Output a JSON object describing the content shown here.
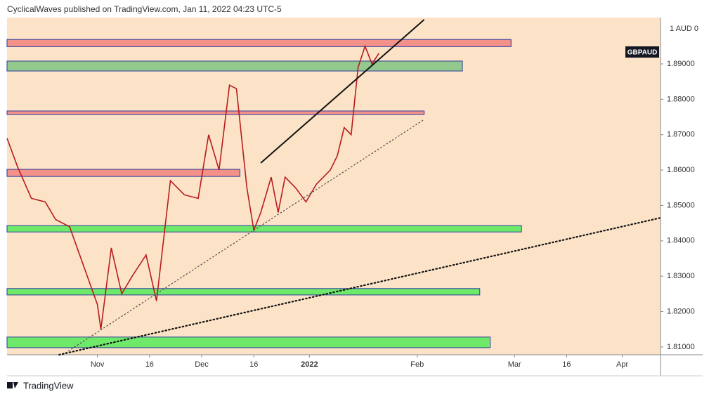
{
  "header": "CyclicalWaves published on TradingView.com, Jan 11, 2022 04:23 UTC-5",
  "footer": "TradingView",
  "chart_data": {
    "type": "line",
    "symbol": "GBPAUD",
    "currency_label": "1 AUD 0",
    "color": "#b71c1c",
    "background": "#fce3c8",
    "x": [
      "2021-10-06",
      "2021-10-09",
      "2021-10-13",
      "2021-10-17",
      "2021-10-20",
      "2021-10-24",
      "2021-10-28",
      "2021-11-01",
      "2021-11-02",
      "2021-11-05",
      "2021-11-08",
      "2021-11-11",
      "2021-11-15",
      "2021-11-18",
      "2021-11-20",
      "2021-11-22",
      "2021-11-26",
      "2021-11-30",
      "2021-12-03",
      "2021-12-06",
      "2021-12-09",
      "2021-12-11",
      "2021-12-14",
      "2021-12-16",
      "2021-12-18",
      "2021-12-21",
      "2021-12-23",
      "2021-12-25",
      "2021-12-28",
      "2021-12-31",
      "2022-01-03",
      "2022-01-05",
      "2022-01-07",
      "2022-01-09",
      "2022-01-11",
      "2022-01-13",
      "2022-01-15",
      "2022-01-17",
      "2022-01-19",
      "2022-01-21"
    ],
    "values": [
      1.869,
      1.861,
      1.852,
      1.851,
      1.846,
      1.844,
      1.833,
      1.822,
      1.815,
      1.838,
      1.825,
      1.83,
      1.836,
      1.823,
      1.84,
      1.857,
      1.853,
      1.852,
      1.87,
      1.86,
      1.884,
      1.883,
      1.855,
      1.843,
      1.848,
      1.858,
      1.848,
      1.858,
      1.855,
      1.851,
      1.856,
      1.858,
      1.86,
      1.864,
      1.872,
      1.87,
      1.889,
      1.895,
      1.89,
      1.893
    ],
    "xlim": [
      "2021-10-06",
      "2022-04-12"
    ],
    "xticks": [
      {
        "value": "2021-11-01",
        "label": "Nov"
      },
      {
        "value": "2021-11-16",
        "label": "16"
      },
      {
        "value": "2021-12-01",
        "label": "Dec"
      },
      {
        "value": "2021-12-16",
        "label": "16"
      },
      {
        "value": "2022-01-01",
        "label": "2022"
      },
      {
        "value": "2022-02-01",
        "label": "Feb"
      },
      {
        "value": "2022-03-01",
        "label": "Mar"
      },
      {
        "value": "2022-03-16",
        "label": "16"
      },
      {
        "value": "2022-04-01",
        "label": "Apr"
      }
    ],
    "ylim": [
      1.8078,
      1.9031
    ],
    "yticks": [
      {
        "value": 1.81,
        "label": "1.81000"
      },
      {
        "value": 1.82,
        "label": "1.82000"
      },
      {
        "value": 1.83,
        "label": "1.83000"
      },
      {
        "value": 1.84,
        "label": "1.84000"
      },
      {
        "value": 1.85,
        "label": "1.85000"
      },
      {
        "value": 1.86,
        "label": "1.86000"
      },
      {
        "value": 1.87,
        "label": "1.87000"
      },
      {
        "value": 1.88,
        "label": "1.88000"
      },
      {
        "value": 1.89,
        "label": "1.89000"
      }
    ],
    "zones": [
      {
        "from": 1.8949,
        "to": 1.8969,
        "end": "2022-02-28",
        "color": "#f4928a"
      },
      {
        "from": 1.888,
        "to": 1.8908,
        "end": "2022-02-14",
        "color": "#93c98d"
      },
      {
        "from": 1.8757,
        "to": 1.8767,
        "end": "2022-02-03",
        "color": "#f4928a"
      },
      {
        "from": 1.8582,
        "to": 1.8602,
        "end": "2021-12-12",
        "color": "#f4928a"
      },
      {
        "from": 1.8425,
        "to": 1.8443,
        "end": "2022-03-03",
        "color": "#6ee96a"
      },
      {
        "from": 1.8247,
        "to": 1.8265,
        "end": "2022-02-19",
        "color": "#6ee96a"
      },
      {
        "from": 1.8098,
        "to": 1.8128,
        "end": "2022-02-22",
        "color": "#6ee96a"
      }
    ],
    "lines": [
      {
        "x": [
          "2021-12-18",
          "2022-02-03"
        ],
        "y": [
          1.862,
          1.9025
        ],
        "style": "solid"
      },
      {
        "x": [
          "2021-10-22",
          "2022-02-03"
        ],
        "y": [
          1.8078,
          1.8743
        ],
        "style": "dotted"
      },
      {
        "x": [
          "2021-10-21",
          "2022-04-12"
        ],
        "y": [
          1.8078,
          1.8465
        ],
        "style": "dotted"
      }
    ]
  }
}
